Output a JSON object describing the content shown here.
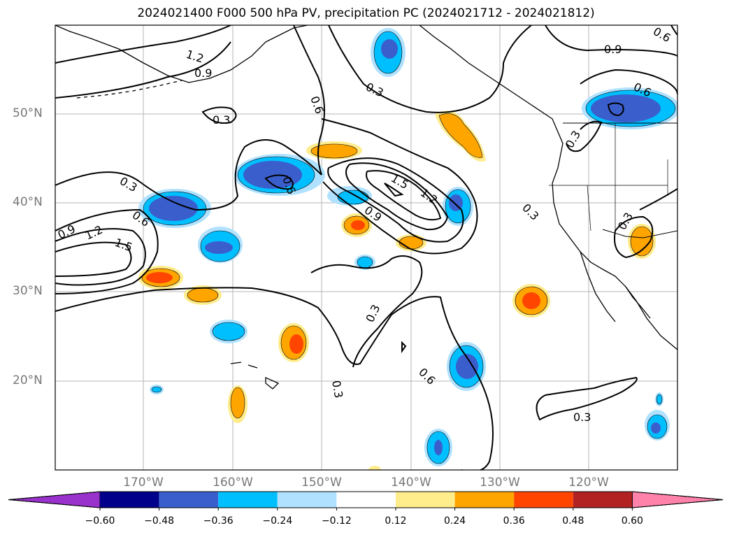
{
  "title": "2024021400 F000 500 hPa PV, precipitation PC (2024021712 - 2024021812)",
  "lat_labels": [
    "50°N",
    "40°N",
    "30°N",
    "20°N"
  ],
  "lon_labels": [
    "170°W",
    "160°W",
    "150°W",
    "140°W",
    "130°W",
    "120°W"
  ],
  "colorbar": {
    "ticks": [
      "−0.60",
      "−0.48",
      "−0.36",
      "−0.24",
      "−0.12",
      "0.12",
      "0.24",
      "0.36",
      "0.48",
      "0.60"
    ],
    "colors": [
      "#9932cc",
      "#00008b",
      "#3a5fcd",
      "#00bfff",
      "#b0e2ff",
      "#ffffff",
      "#ffec8b",
      "#ffa500",
      "#ff4500",
      "#b22222",
      "#ff82ab"
    ]
  },
  "contour_labels": [
    "1.2",
    "0.9",
    "0.3",
    "0.6",
    "0.3",
    "0.9",
    "0.6",
    "0.3",
    "0.6",
    "0.9",
    "1.2",
    "1.5",
    "0.3",
    "0.6",
    "0.9",
    "1.5",
    "1.2",
    "0.6",
    "0.3",
    "0.3",
    "0.3",
    "0.3",
    "0.6",
    "0.3",
    "0.3"
  ],
  "map_extent": {
    "lon_min": -180,
    "lon_max": -110,
    "lat_min": 10,
    "lat_max": 60
  }
}
